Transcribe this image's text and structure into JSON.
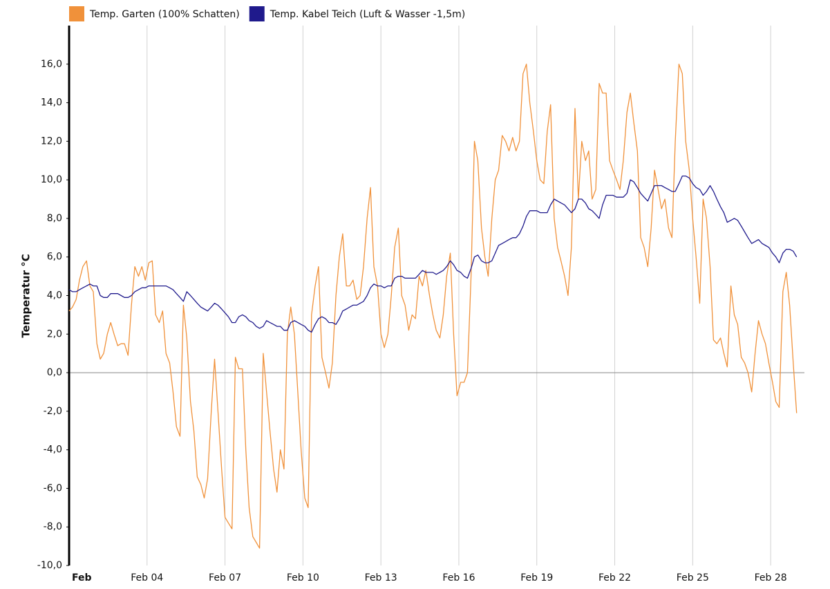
{
  "chart_data": {
    "type": "line",
    "y_label": "Temperatur °C",
    "x": [
      1,
      1.13,
      1.27,
      1.4,
      1.53,
      1.67,
      1.8,
      1.93,
      2.07,
      2.2,
      2.33,
      2.47,
      2.6,
      2.73,
      2.87,
      3,
      3.13,
      3.27,
      3.4,
      3.53,
      3.67,
      3.8,
      3.93,
      4.07,
      4.2,
      4.33,
      4.47,
      4.6,
      4.73,
      4.87,
      5,
      5.13,
      5.27,
      5.4,
      5.53,
      5.67,
      5.8,
      5.93,
      6.07,
      6.2,
      6.33,
      6.47,
      6.6,
      6.73,
      6.87,
      7,
      7.13,
      7.27,
      7.4,
      7.53,
      7.67,
      7.8,
      7.93,
      8.07,
      8.2,
      8.33,
      8.47,
      8.6,
      8.73,
      8.87,
      9,
      9.13,
      9.27,
      9.4,
      9.53,
      9.67,
      9.8,
      9.93,
      10.07,
      10.2,
      10.33,
      10.47,
      10.6,
      10.73,
      10.87,
      11,
      11.13,
      11.27,
      11.4,
      11.53,
      11.67,
      11.8,
      11.93,
      12.07,
      12.2,
      12.33,
      12.47,
      12.6,
      12.73,
      12.87,
      13,
      13.13,
      13.27,
      13.4,
      13.53,
      13.67,
      13.8,
      13.93,
      14.07,
      14.2,
      14.33,
      14.47,
      14.6,
      14.73,
      14.87,
      15,
      15.13,
      15.27,
      15.4,
      15.53,
      15.67,
      15.8,
      15.93,
      16.07,
      16.2,
      16.33,
      16.47,
      16.6,
      16.73,
      16.87,
      17,
      17.13,
      17.27,
      17.4,
      17.53,
      17.67,
      17.8,
      17.93,
      18.07,
      18.2,
      18.33,
      18.47,
      18.6,
      18.73,
      18.87,
      19,
      19.13,
      19.27,
      19.4,
      19.53,
      19.67,
      19.8,
      19.93,
      20.07,
      20.2,
      20.33,
      20.47,
      20.6,
      20.73,
      20.87,
      21,
      21.13,
      21.27,
      21.4,
      21.53,
      21.67,
      21.8,
      21.93,
      22.07,
      22.2,
      22.33,
      22.47,
      22.6,
      22.73,
      22.87,
      23,
      23.13,
      23.27,
      23.4,
      23.53,
      23.67,
      23.8,
      23.93,
      24.07,
      24.2,
      24.33,
      24.47,
      24.6,
      24.73,
      24.87,
      25,
      25.13,
      25.27,
      25.4,
      25.53,
      25.67,
      25.8,
      25.93,
      26.07,
      26.2,
      26.33,
      26.47,
      26.6,
      26.73,
      26.87,
      27,
      27.13,
      27.27,
      27.4,
      27.53,
      27.67,
      27.8,
      27.93,
      28.07,
      28.2,
      28.33,
      28.47,
      28.6,
      28.73,
      28.87,
      29
    ],
    "series": [
      {
        "name": "Temp. Garten (100% Schatten)",
        "color": "#f0913a",
        "values": [
          3.2,
          3.4,
          3.8,
          4.8,
          5.5,
          5.8,
          4.5,
          4.2,
          1.5,
          0.7,
          1.0,
          2.0,
          2.6,
          2.0,
          1.4,
          1.5,
          1.5,
          0.9,
          3.5,
          5.5,
          5.0,
          5.5,
          4.8,
          5.7,
          5.8,
          3.0,
          2.6,
          3.2,
          1.0,
          0.5,
          -1,
          -2.8,
          -3.3,
          3.5,
          1.8,
          -1.5,
          -3,
          -5.4,
          -5.8,
          -6.5,
          -5.5,
          -2,
          0.7,
          -2,
          -5,
          -7.5,
          -7.8,
          -8.1,
          0.8,
          0.2,
          0.2,
          -4,
          -7,
          -8.5,
          -8.8,
          -9.1,
          1.0,
          -1,
          -3,
          -5,
          -6.2,
          -4,
          -5,
          2.0,
          3.4,
          2.0,
          -1,
          -4,
          -6.5,
          -7,
          3.0,
          4.5,
          5.5,
          0.8,
          0,
          -0.8,
          0.5,
          4,
          6,
          7.2,
          4.5,
          4.5,
          4.8,
          3.8,
          4.0,
          5.5,
          8.0,
          9.6,
          5.5,
          4.5,
          2.0,
          1.3,
          2.0,
          4.0,
          6.5,
          7.5,
          4.0,
          3.5,
          2.2,
          3.0,
          2.8,
          5.0,
          4.5,
          5.3,
          4.0,
          3.0,
          2.2,
          1.8,
          3.0,
          5.0,
          6.2,
          2.0,
          -1.2,
          -0.5,
          -0.5,
          0.0,
          5.0,
          12.0,
          11.0,
          7.5,
          6.0,
          5.0,
          8.0,
          10.0,
          10.5,
          12.3,
          12.0,
          11.5,
          12.2,
          11.5,
          12.0,
          15.5,
          16.0,
          14.0,
          12.5,
          11.0,
          10.0,
          9.8,
          12.5,
          13.9,
          8.0,
          6.5,
          5.8,
          5.0,
          4.0,
          6.5,
          13.7,
          9.0,
          12.0,
          11.0,
          11.5,
          9.0,
          9.5,
          15.0,
          14.5,
          14.5,
          11.0,
          10.5,
          10.0,
          9.5,
          11.0,
          13.5,
          14.5,
          13.0,
          11.5,
          7.0,
          6.5,
          5.5,
          7.5,
          10.5,
          9.5,
          8.5,
          9.0,
          7.5,
          7.0,
          12.0,
          16.0,
          15.5,
          12.0,
          10.5,
          8.0,
          6.0,
          3.6,
          9.0,
          8.0,
          5.5,
          1.7,
          1.5,
          1.8,
          1.0,
          0.3,
          4.5,
          3.0,
          2.5,
          0.8,
          0.5,
          0.0,
          -1.0,
          1.0,
          2.7,
          2.0,
          1.5,
          0.5,
          -0.5,
          -1.5,
          -1.8,
          4.2,
          5.2,
          3.5,
          0.5,
          -2.1
        ]
      },
      {
        "name": "Temp. Kabel Teich (Luft & Wasser -1,5m)",
        "color": "#1f1a8c",
        "values": [
          4.3,
          4.2,
          4.2,
          4.3,
          4.4,
          4.5,
          4.6,
          4.5,
          4.5,
          4.0,
          3.9,
          3.9,
          4.1,
          4.1,
          4.1,
          4.0,
          3.9,
          3.9,
          4.0,
          4.2,
          4.3,
          4.4,
          4.4,
          4.5,
          4.5,
          4.5,
          4.5,
          4.5,
          4.5,
          4.4,
          4.3,
          4.1,
          3.9,
          3.7,
          4.2,
          4.0,
          3.8,
          3.6,
          3.4,
          3.3,
          3.2,
          3.4,
          3.6,
          3.5,
          3.3,
          3.1,
          2.9,
          2.6,
          2.6,
          2.9,
          3.0,
          2.9,
          2.7,
          2.6,
          2.4,
          2.3,
          2.4,
          2.7,
          2.6,
          2.5,
          2.4,
          2.4,
          2.2,
          2.2,
          2.6,
          2.7,
          2.6,
          2.5,
          2.4,
          2.2,
          2.1,
          2.5,
          2.8,
          2.9,
          2.8,
          2.6,
          2.6,
          2.5,
          2.8,
          3.2,
          3.3,
          3.4,
          3.5,
          3.5,
          3.6,
          3.7,
          4.0,
          4.4,
          4.6,
          4.5,
          4.5,
          4.4,
          4.5,
          4.5,
          4.9,
          5.0,
          5.0,
          4.9,
          4.9,
          4.9,
          4.9,
          5.1,
          5.3,
          5.2,
          5.2,
          5.2,
          5.1,
          5.2,
          5.3,
          5.5,
          5.8,
          5.6,
          5.3,
          5.2,
          5.0,
          4.9,
          5.4,
          6.0,
          6.1,
          5.8,
          5.7,
          5.7,
          5.8,
          6.2,
          6.6,
          6.7,
          6.8,
          6.9,
          7.0,
          7.0,
          7.2,
          7.6,
          8.1,
          8.4,
          8.4,
          8.4,
          8.3,
          8.3,
          8.3,
          8.7,
          9.0,
          8.9,
          8.8,
          8.7,
          8.5,
          8.3,
          8.5,
          9.0,
          9.0,
          8.8,
          8.5,
          8.4,
          8.2,
          8.0,
          8.7,
          9.2,
          9.2,
          9.2,
          9.1,
          9.1,
          9.1,
          9.3,
          10.0,
          9.9,
          9.6,
          9.3,
          9.1,
          8.9,
          9.3,
          9.7,
          9.7,
          9.7,
          9.6,
          9.5,
          9.4,
          9.4,
          9.8,
          10.2,
          10.2,
          10.1,
          9.8,
          9.6,
          9.5,
          9.2,
          9.4,
          9.7,
          9.4,
          9.0,
          8.6,
          8.3,
          7.8,
          7.9,
          8.0,
          7.9,
          7.6,
          7.3,
          7.0,
          6.7,
          6.8,
          6.9,
          6.7,
          6.6,
          6.5,
          6.2,
          6.0,
          5.7,
          6.2,
          6.4,
          6.4,
          6.3,
          6.0
        ]
      }
    ],
    "xlim": [
      1,
      29.3
    ],
    "xticks": [
      {
        "value": 1,
        "label": "Feb"
      },
      {
        "value": 4,
        "label": "Feb 04"
      },
      {
        "value": 7,
        "label": "Feb 07"
      },
      {
        "value": 10,
        "label": "Feb 10"
      },
      {
        "value": 13,
        "label": "Feb 13"
      },
      {
        "value": 16,
        "label": "Feb 16"
      },
      {
        "value": 19,
        "label": "Feb 19"
      },
      {
        "value": 22,
        "label": "Feb 22"
      },
      {
        "value": 25,
        "label": "Feb 25"
      },
      {
        "value": 28,
        "label": "Feb 28"
      }
    ],
    "ylim": [
      -10,
      18
    ],
    "yticks": [
      {
        "value": -10,
        "label": "-10,0"
      },
      {
        "value": -8,
        "label": "-8,0"
      },
      {
        "value": -6,
        "label": "-6,0"
      },
      {
        "value": -4,
        "label": "-4,0"
      },
      {
        "value": -2,
        "label": "-2,0"
      },
      {
        "value": 0,
        "label": "0,0"
      },
      {
        "value": 2,
        "label": "2,0"
      },
      {
        "value": 4,
        "label": "4,0"
      },
      {
        "value": 6,
        "label": "6,0"
      },
      {
        "value": 8,
        "label": "8,0"
      },
      {
        "value": 10,
        "label": "10,0"
      },
      {
        "value": 12,
        "label": "12,0"
      },
      {
        "value": 14,
        "label": "14,0"
      },
      {
        "value": 16,
        "label": "16,0"
      }
    ],
    "xgrid": true,
    "legend": "top"
  }
}
